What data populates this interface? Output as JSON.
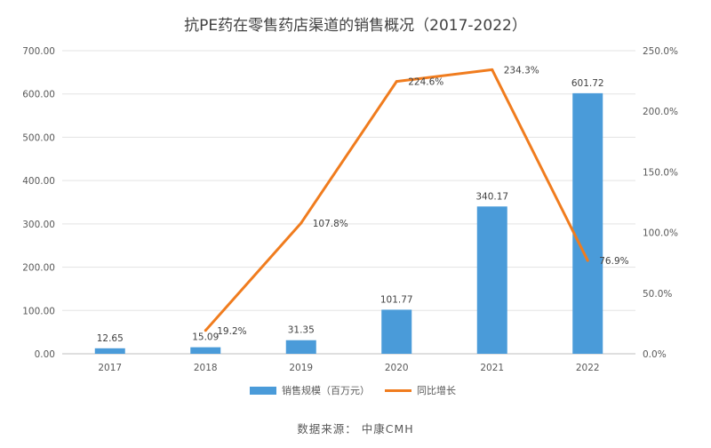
{
  "chart_data": {
    "type": "bar",
    "title": "抗PE药在零售药店渠道的销售概况（2017-2022）",
    "categories": [
      "2017",
      "2018",
      "2019",
      "2020",
      "2021",
      "2022"
    ],
    "series": [
      {
        "name": "销售规模（百万元）",
        "type": "bar",
        "axis": "left",
        "color": "#4a9bd9",
        "values": [
          12.65,
          15.09,
          31.35,
          101.77,
          340.17,
          601.72
        ],
        "labels": [
          "12.65",
          "15.09",
          "31.35",
          "101.77",
          "340.17",
          "601.72"
        ]
      },
      {
        "name": "同比增长",
        "type": "line",
        "axis": "right",
        "color": "#f07c1e",
        "values": [
          null,
          19.2,
          107.8,
          224.6,
          234.3,
          76.9
        ],
        "labels": [
          "",
          "19.2%",
          "107.8%",
          "224.6%",
          "234.3%",
          "76.9%"
        ]
      }
    ],
    "y_left": {
      "min": 0,
      "max": 700,
      "step": 100,
      "ticks": [
        "0.00",
        "100.00",
        "200.00",
        "300.00",
        "400.00",
        "500.00",
        "600.00",
        "700.00"
      ]
    },
    "y_right": {
      "min": 0,
      "max": 250,
      "step": 50,
      "ticks": [
        "0.0%",
        "50.0%",
        "100.0%",
        "150.0%",
        "200.0%",
        "250.0%"
      ]
    },
    "grid": true,
    "legend": "bottom-center"
  },
  "source": "数据来源：  中康CMH"
}
